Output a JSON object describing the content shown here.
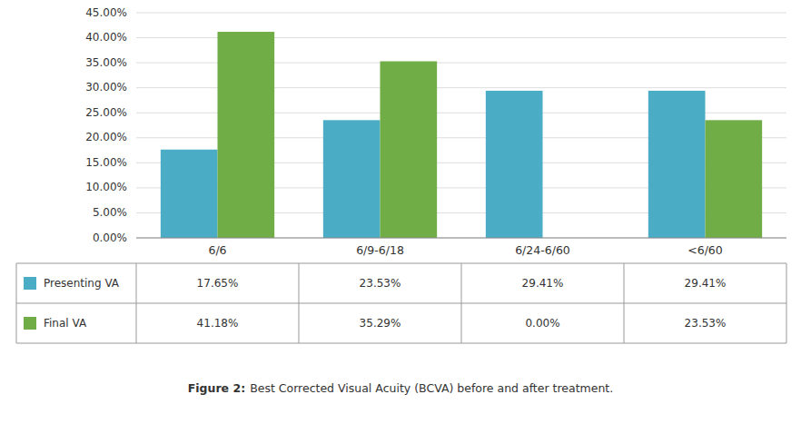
{
  "chart_data": {
    "type": "bar",
    "title": "Figure 2:",
    "subtitle": "Best Corrected Visual Acuity (BCVA) before and after treatment.",
    "categories": [
      "6/6",
      "6/9-6/18",
      "6/24-6/60",
      "<6/60"
    ],
    "series": [
      {
        "name": "Presenting VA",
        "color": "#4BACC6",
        "values": [
          0.1765,
          0.2353,
          0.2941,
          0.2941
        ],
        "value_labels": [
          "17.65%",
          "23.53%",
          "29.41%",
          "29.41%"
        ]
      },
      {
        "name": "Final VA",
        "color": "#70AD47",
        "values": [
          0.4118,
          0.3529,
          0.0,
          0.2353
        ],
        "value_labels": [
          "41.18%",
          "35.29%",
          "0.00%",
          "23.53%"
        ]
      }
    ],
    "ylim": [
      0,
      0.45
    ],
    "yticks": [
      {
        "value": 0.0,
        "label": "0.00%"
      },
      {
        "value": 0.05,
        "label": "5.00%"
      },
      {
        "value": 0.1,
        "label": "10.00%"
      },
      {
        "value": 0.15,
        "label": "15.00%"
      },
      {
        "value": 0.2,
        "label": "20.00%"
      },
      {
        "value": 0.25,
        "label": "25.00%"
      },
      {
        "value": 0.3,
        "label": "30.00%"
      },
      {
        "value": 0.35,
        "label": "35.00%"
      },
      {
        "value": 0.4,
        "label": "40.00%"
      },
      {
        "value": 0.45,
        "label": "45.00%"
      }
    ],
    "grid": true
  }
}
